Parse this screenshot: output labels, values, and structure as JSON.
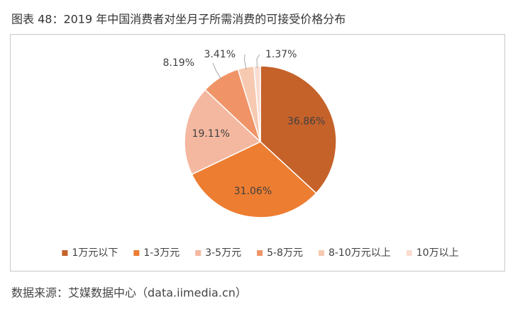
{
  "chart_data": {
    "type": "pie",
    "title": "图表 48：2019 年中国消费者对坐月子所需消费的可接受价格分布",
    "categories": [
      "1万元以下",
      "1-3万元",
      "3-5万元",
      "5-8万元",
      "8-10万元以上",
      "10万以上"
    ],
    "values": [
      36.86,
      31.06,
      19.11,
      8.19,
      3.41,
      1.37
    ],
    "value_labels": [
      "36.86%",
      "31.06%",
      "19.11%",
      "8.19%",
      "3.41%",
      "1.37%"
    ],
    "colors": [
      "#c5622a",
      "#ed7d31",
      "#f4b8a0",
      "#f09468",
      "#f6c9b0",
      "#fadcd0"
    ],
    "legend": "bottom",
    "source": "数据来源：艾媒数据中心（data.iimedia.cn）"
  }
}
